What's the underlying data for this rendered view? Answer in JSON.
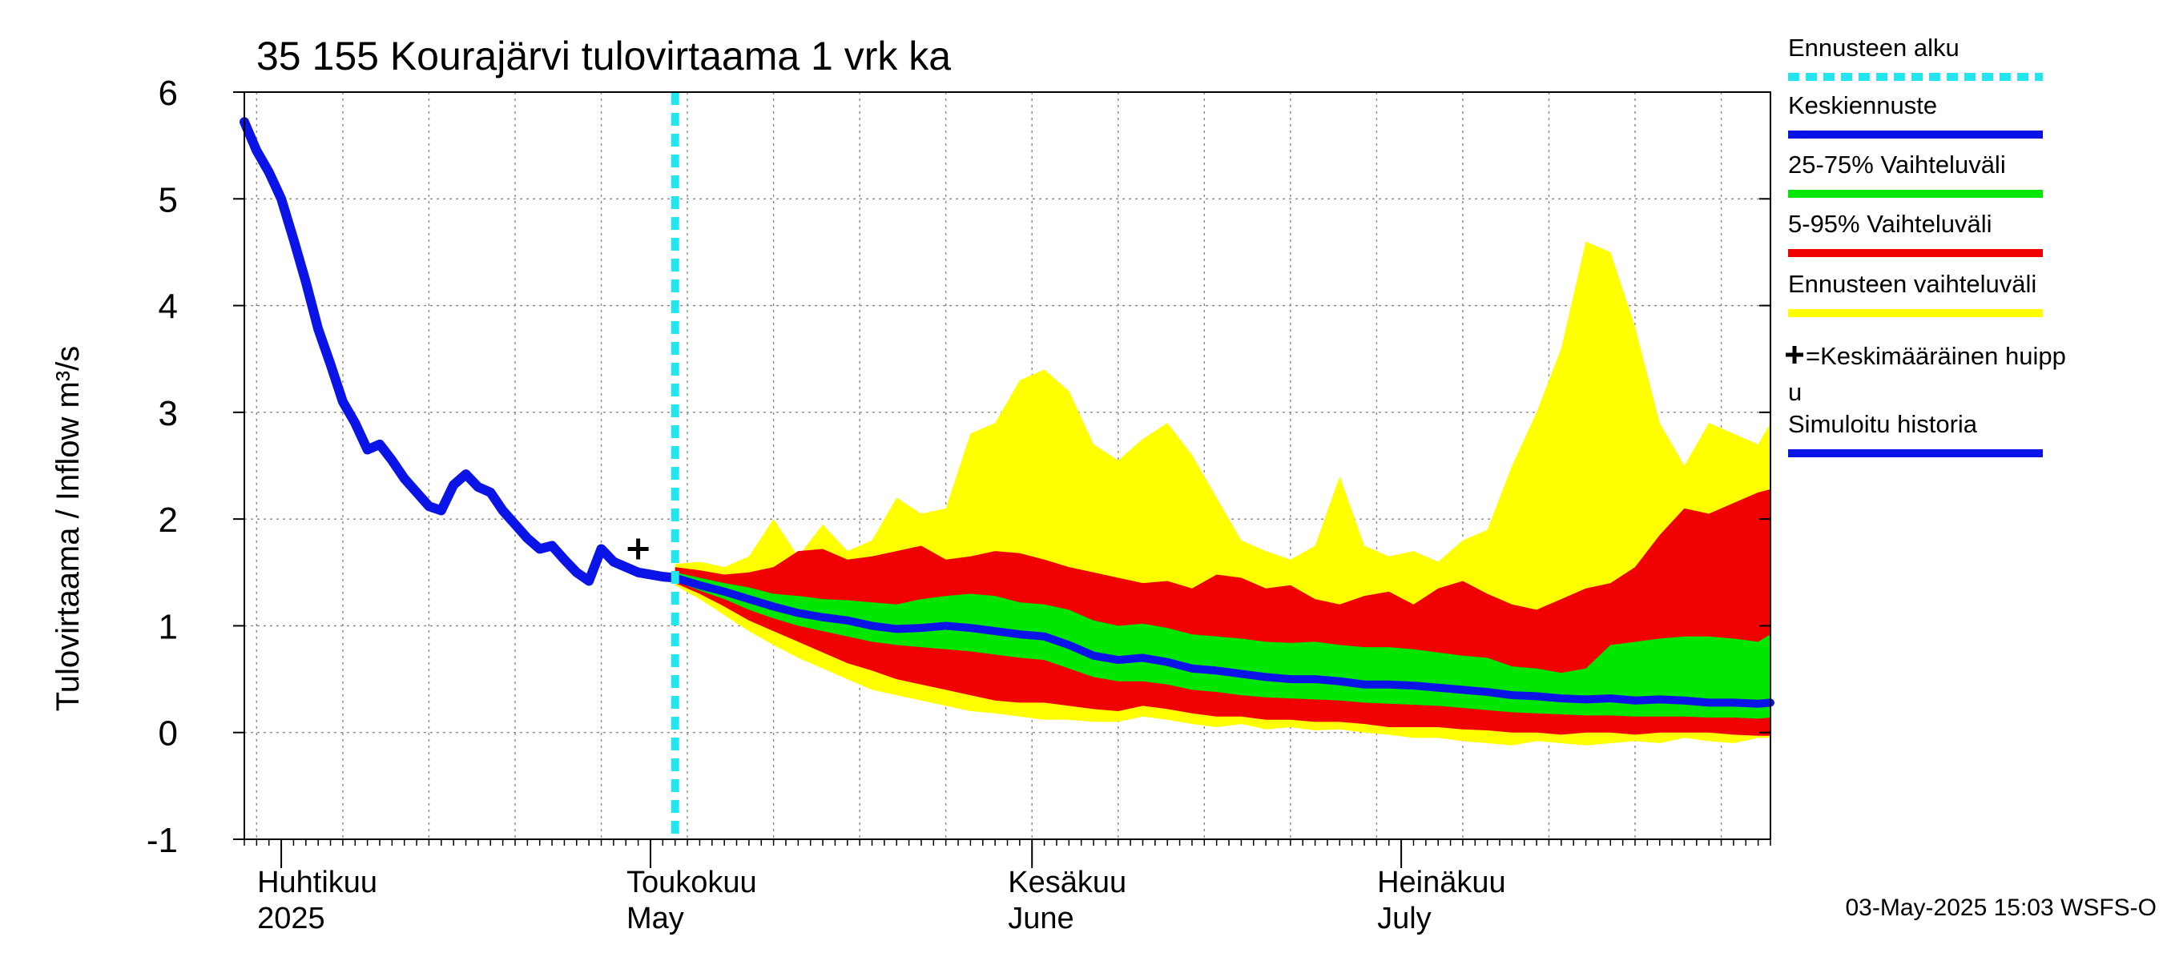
{
  "chart_data": {
    "type": "area",
    "title": "35 155 Kourajärvi tulovirtaama 1 vrk ka",
    "ylabel": "Tulovirtaama / Inflow    m³/s",
    "ylim": [
      -1,
      6
    ],
    "yticks": [
      -1,
      0,
      1,
      2,
      3,
      4,
      5,
      6
    ],
    "xlim": [
      "2025-03-29",
      "2025-07-31"
    ],
    "month_labels": [
      {
        "date": "2025-04-01",
        "fi": "Huhtikuu",
        "en": "2025"
      },
      {
        "date": "2025-05-01",
        "fi": "Toukokuu",
        "en": "May"
      },
      {
        "date": "2025-06-01",
        "fi": "Kesäkuu",
        "en": "June"
      },
      {
        "date": "2025-07-01",
        "fi": "Heinäkuu",
        "en": "July"
      }
    ],
    "forecast_start": "2025-05-03",
    "mean_peak": {
      "date": "2025-04-30",
      "value": 1.72
    },
    "timestamp": "03-May-2025 15:03 WSFS-O",
    "legend": {
      "placement": "right",
      "items": [
        {
          "label": "Ennusteen alku",
          "color": "#22e5ee",
          "style": "dashed"
        },
        {
          "label": "Keskiennuste",
          "color": "#0a14e6",
          "style": "solid"
        },
        {
          "label": "25-75% Vaihteluväli",
          "color": "#00e600",
          "style": "solid"
        },
        {
          "label": "5-95% Vaihteluväli",
          "color": "#f00000",
          "style": "solid"
        },
        {
          "label": "Ennusteen vaihteluväli",
          "color": "#ffff00",
          "style": "solid"
        },
        {
          "label": "=Keskimääräinen huipp u",
          "color": "#000000",
          "style": "plus"
        },
        {
          "label": "Simuloitu historia",
          "color": "#0a14e6",
          "style": "solid"
        }
      ]
    },
    "colors": {
      "history": "#0a14e6",
      "median": "#0a14e6",
      "band_25_75": "#00e600",
      "band_5_95": "#f00000",
      "band_total": "#ffff00",
      "forecast_start": "#22e5ee",
      "grid": "#888888"
    },
    "series": [
      {
        "name": "Simuloitu historia",
        "x": [
          "2025-03-29",
          "2025-03-30",
          "2025-03-31",
          "2025-04-01",
          "2025-04-02",
          "2025-04-03",
          "2025-04-04",
          "2025-04-05",
          "2025-04-06",
          "2025-04-07",
          "2025-04-08",
          "2025-04-09",
          "2025-04-10",
          "2025-04-11",
          "2025-04-12",
          "2025-04-13",
          "2025-04-14",
          "2025-04-15",
          "2025-04-16",
          "2025-04-17",
          "2025-04-18",
          "2025-04-19",
          "2025-04-20",
          "2025-04-21",
          "2025-04-22",
          "2025-04-23",
          "2025-04-24",
          "2025-04-25",
          "2025-04-26",
          "2025-04-27",
          "2025-04-28",
          "2025-04-29",
          "2025-04-30",
          "2025-05-01",
          "2025-05-02",
          "2025-05-03"
        ],
        "values": [
          5.72,
          5.45,
          5.25,
          5.0,
          4.62,
          4.22,
          3.78,
          3.45,
          3.1,
          2.9,
          2.65,
          2.7,
          2.55,
          2.38,
          2.25,
          2.12,
          2.08,
          2.32,
          2.42,
          2.3,
          2.25,
          2.08,
          1.95,
          1.82,
          1.72,
          1.75,
          1.62,
          1.5,
          1.42,
          1.72,
          1.6,
          1.55,
          1.5,
          1.48,
          1.46,
          1.45
        ]
      },
      {
        "name": "Keskiennuste",
        "x": [
          "2025-05-03",
          "2025-05-05",
          "2025-05-07",
          "2025-05-09",
          "2025-05-11",
          "2025-05-13",
          "2025-05-15",
          "2025-05-17",
          "2025-05-19",
          "2025-05-21",
          "2025-05-23",
          "2025-05-25",
          "2025-05-27",
          "2025-05-29",
          "2025-05-31",
          "2025-06-02",
          "2025-06-04",
          "2025-06-06",
          "2025-06-08",
          "2025-06-10",
          "2025-06-12",
          "2025-06-14",
          "2025-06-16",
          "2025-06-18",
          "2025-06-20",
          "2025-06-22",
          "2025-06-24",
          "2025-06-26",
          "2025-06-28",
          "2025-06-30",
          "2025-07-02",
          "2025-07-04",
          "2025-07-06",
          "2025-07-08",
          "2025-07-10",
          "2025-07-12",
          "2025-07-14",
          "2025-07-16",
          "2025-07-18",
          "2025-07-20",
          "2025-07-22",
          "2025-07-24",
          "2025-07-26",
          "2025-07-28",
          "2025-07-30",
          "2025-07-31"
        ],
        "values": [
          1.45,
          1.38,
          1.32,
          1.25,
          1.18,
          1.12,
          1.08,
          1.05,
          1.0,
          0.97,
          0.98,
          1.0,
          0.98,
          0.95,
          0.92,
          0.9,
          0.82,
          0.72,
          0.68,
          0.7,
          0.66,
          0.6,
          0.58,
          0.55,
          0.52,
          0.5,
          0.5,
          0.48,
          0.45,
          0.45,
          0.44,
          0.42,
          0.4,
          0.38,
          0.35,
          0.34,
          0.32,
          0.31,
          0.32,
          0.3,
          0.31,
          0.3,
          0.28,
          0.28,
          0.27,
          0.28
        ]
      },
      {
        "name": "25-75% Vaihteluväli",
        "x": [
          "2025-05-03",
          "2025-05-05",
          "2025-05-07",
          "2025-05-09",
          "2025-05-11",
          "2025-05-13",
          "2025-05-15",
          "2025-05-17",
          "2025-05-19",
          "2025-05-21",
          "2025-05-23",
          "2025-05-25",
          "2025-05-27",
          "2025-05-29",
          "2025-05-31",
          "2025-06-02",
          "2025-06-04",
          "2025-06-06",
          "2025-06-08",
          "2025-06-10",
          "2025-06-12",
          "2025-06-14",
          "2025-06-16",
          "2025-06-18",
          "2025-06-20",
          "2025-06-22",
          "2025-06-24",
          "2025-06-26",
          "2025-06-28",
          "2025-06-30",
          "2025-07-02",
          "2025-07-04",
          "2025-07-06",
          "2025-07-08",
          "2025-07-10",
          "2025-07-12",
          "2025-07-14",
          "2025-07-16",
          "2025-07-18",
          "2025-07-20",
          "2025-07-22",
          "2025-07-24",
          "2025-07-26",
          "2025-07-28",
          "2025-07-30",
          "2025-07-31"
        ],
        "low": [
          1.42,
          1.33,
          1.25,
          1.15,
          1.07,
          1.0,
          0.95,
          0.9,
          0.85,
          0.82,
          0.8,
          0.78,
          0.76,
          0.73,
          0.7,
          0.68,
          0.6,
          0.52,
          0.48,
          0.48,
          0.45,
          0.4,
          0.38,
          0.35,
          0.33,
          0.32,
          0.31,
          0.3,
          0.28,
          0.27,
          0.26,
          0.25,
          0.23,
          0.21,
          0.19,
          0.18,
          0.17,
          0.16,
          0.16,
          0.15,
          0.15,
          0.15,
          0.14,
          0.14,
          0.13,
          0.14
        ],
        "high": [
          1.5,
          1.45,
          1.4,
          1.36,
          1.3,
          1.28,
          1.25,
          1.24,
          1.22,
          1.2,
          1.25,
          1.28,
          1.3,
          1.28,
          1.22,
          1.2,
          1.15,
          1.05,
          1.0,
          1.02,
          0.98,
          0.92,
          0.9,
          0.88,
          0.85,
          0.84,
          0.85,
          0.82,
          0.8,
          0.8,
          0.78,
          0.75,
          0.72,
          0.7,
          0.62,
          0.6,
          0.56,
          0.6,
          0.82,
          0.85,
          0.88,
          0.9,
          0.9,
          0.88,
          0.85,
          0.92
        ]
      },
      {
        "name": "5-95% Vaihteluväli",
        "x": [
          "2025-05-03",
          "2025-05-05",
          "2025-05-07",
          "2025-05-09",
          "2025-05-11",
          "2025-05-13",
          "2025-05-15",
          "2025-05-17",
          "2025-05-19",
          "2025-05-21",
          "2025-05-23",
          "2025-05-25",
          "2025-05-27",
          "2025-05-29",
          "2025-05-31",
          "2025-06-02",
          "2025-06-04",
          "2025-06-06",
          "2025-06-08",
          "2025-06-10",
          "2025-06-12",
          "2025-06-14",
          "2025-06-16",
          "2025-06-18",
          "2025-06-20",
          "2025-06-22",
          "2025-06-24",
          "2025-06-26",
          "2025-06-28",
          "2025-06-30",
          "2025-07-02",
          "2025-07-04",
          "2025-07-06",
          "2025-07-08",
          "2025-07-10",
          "2025-07-12",
          "2025-07-14",
          "2025-07-16",
          "2025-07-18",
          "2025-07-20",
          "2025-07-22",
          "2025-07-24",
          "2025-07-26",
          "2025-07-28",
          "2025-07-30",
          "2025-07-31"
        ],
        "low": [
          1.4,
          1.3,
          1.18,
          1.05,
          0.95,
          0.85,
          0.75,
          0.65,
          0.58,
          0.5,
          0.45,
          0.4,
          0.35,
          0.3,
          0.28,
          0.28,
          0.25,
          0.22,
          0.2,
          0.25,
          0.22,
          0.18,
          0.15,
          0.15,
          0.12,
          0.12,
          0.1,
          0.1,
          0.08,
          0.05,
          0.05,
          0.05,
          0.03,
          0.02,
          0.0,
          0.0,
          -0.02,
          0.0,
          0.0,
          -0.02,
          0.0,
          0.0,
          0.0,
          -0.02,
          -0.03,
          -0.03
        ],
        "high": [
          1.55,
          1.52,
          1.48,
          1.5,
          1.55,
          1.7,
          1.72,
          1.62,
          1.65,
          1.7,
          1.75,
          1.62,
          1.65,
          1.7,
          1.68,
          1.62,
          1.55,
          1.5,
          1.45,
          1.4,
          1.42,
          1.35,
          1.48,
          1.45,
          1.35,
          1.38,
          1.25,
          1.2,
          1.28,
          1.32,
          1.2,
          1.35,
          1.42,
          1.3,
          1.2,
          1.15,
          1.25,
          1.35,
          1.4,
          1.55,
          1.85,
          2.1,
          2.05,
          2.15,
          2.25,
          2.28
        ]
      },
      {
        "name": "Ennusteen vaihteluväli",
        "x": [
          "2025-05-03",
          "2025-05-05",
          "2025-05-07",
          "2025-05-09",
          "2025-05-11",
          "2025-05-13",
          "2025-05-15",
          "2025-05-17",
          "2025-05-19",
          "2025-05-21",
          "2025-05-23",
          "2025-05-25",
          "2025-05-27",
          "2025-05-29",
          "2025-05-31",
          "2025-06-02",
          "2025-06-04",
          "2025-06-06",
          "2025-06-08",
          "2025-06-10",
          "2025-06-12",
          "2025-06-14",
          "2025-06-16",
          "2025-06-18",
          "2025-06-20",
          "2025-06-22",
          "2025-06-24",
          "2025-06-26",
          "2025-06-28",
          "2025-06-30",
          "2025-07-02",
          "2025-07-04",
          "2025-07-06",
          "2025-07-08",
          "2025-07-10",
          "2025-07-12",
          "2025-07-14",
          "2025-07-16",
          "2025-07-18",
          "2025-07-20",
          "2025-07-22",
          "2025-07-24",
          "2025-07-26",
          "2025-07-28",
          "2025-07-30",
          "2025-07-31"
        ],
        "low": [
          1.38,
          1.25,
          1.1,
          0.95,
          0.82,
          0.7,
          0.6,
          0.5,
          0.4,
          0.35,
          0.3,
          0.25,
          0.2,
          0.18,
          0.15,
          0.12,
          0.12,
          0.1,
          0.1,
          0.15,
          0.12,
          0.08,
          0.05,
          0.08,
          0.03,
          0.05,
          0.02,
          0.03,
          0.0,
          -0.02,
          -0.05,
          -0.05,
          -0.08,
          -0.1,
          -0.12,
          -0.08,
          -0.1,
          -0.12,
          -0.1,
          -0.08,
          -0.1,
          -0.05,
          -0.08,
          -0.1,
          -0.05,
          -0.05
        ],
        "high": [
          1.58,
          1.6,
          1.55,
          1.65,
          2.0,
          1.65,
          1.95,
          1.7,
          1.8,
          2.2,
          2.05,
          2.1,
          2.8,
          2.9,
          3.3,
          3.4,
          3.2,
          2.7,
          2.55,
          2.75,
          2.9,
          2.6,
          2.2,
          1.8,
          1.7,
          1.62,
          1.75,
          2.4,
          1.75,
          1.65,
          1.7,
          1.6,
          1.8,
          1.9,
          2.5,
          3.0,
          3.6,
          4.6,
          4.5,
          3.8,
          2.9,
          2.5,
          2.9,
          2.8,
          2.7,
          2.9
        ]
      }
    ]
  }
}
